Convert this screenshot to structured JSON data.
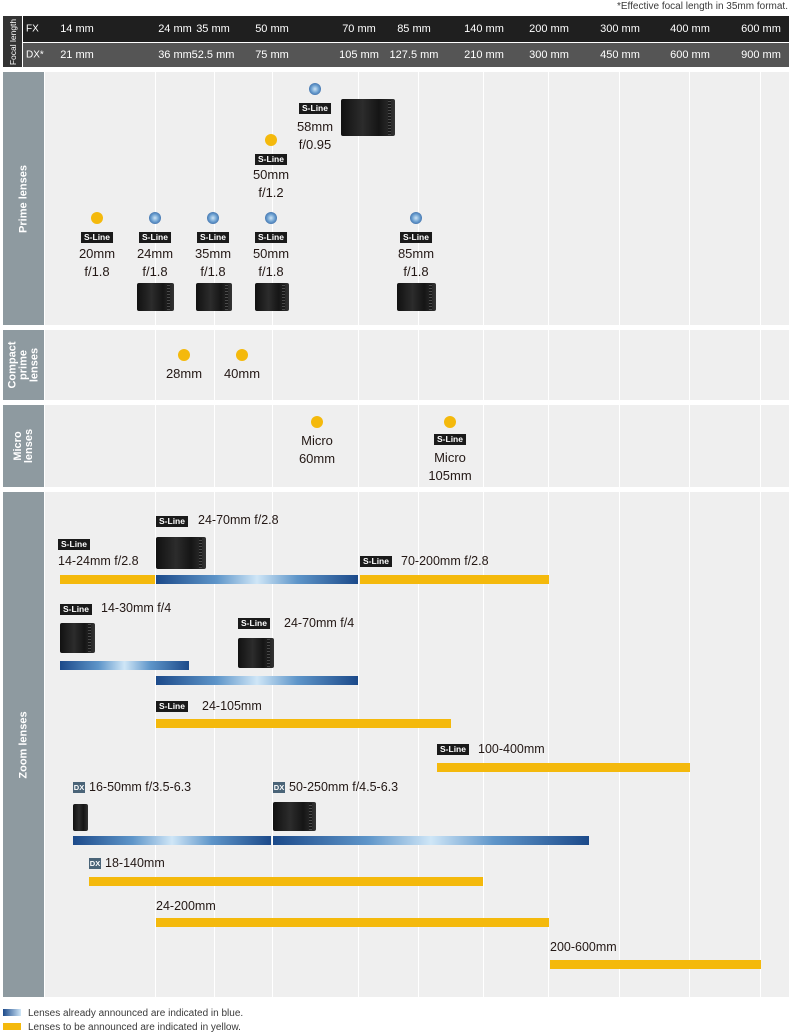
{
  "footnote": "*Effective focal length in 35mm format.",
  "header": {
    "label": "Focal length",
    "fx_tag": "FX",
    "dx_tag": "DX*",
    "fx": [
      "14 mm",
      "24 mm",
      "35 mm",
      "50 mm",
      "70 mm",
      "85 mm",
      "140 mm",
      "200 mm",
      "300 mm",
      "400 mm",
      "600 mm"
    ],
    "dx": [
      "21 mm",
      "36 mm",
      "52.5 mm",
      "75 mm",
      "105 mm",
      "127.5 mm",
      "210 mm",
      "300 mm",
      "450 mm",
      "600 mm",
      "900 mm"
    ]
  },
  "sections": {
    "prime": "Prime lenses",
    "compact": "Compact prime lenses",
    "micro": "Micro lenses",
    "zoom": "Zoom lenses"
  },
  "sline_label": "S-Line",
  "dx_label": "DX",
  "prime_lenses": [
    {
      "name": "58mm\nf/0.95",
      "status": "announced",
      "s_line": true
    },
    {
      "name": "50mm\nf/1.2",
      "status": "planned",
      "s_line": true
    },
    {
      "name": "20mm\nf/1.8",
      "status": "planned",
      "s_line": true
    },
    {
      "name": "24mm\nf/1.8",
      "status": "announced",
      "s_line": true
    },
    {
      "name": "35mm\nf/1.8",
      "status": "announced",
      "s_line": true
    },
    {
      "name": "50mm\nf/1.8",
      "status": "announced",
      "s_line": true
    },
    {
      "name": "85mm\nf/1.8",
      "status": "announced",
      "s_line": true
    }
  ],
  "compact_lenses": [
    {
      "name": "28mm",
      "status": "planned"
    },
    {
      "name": "40mm",
      "status": "planned"
    }
  ],
  "micro_lenses": [
    {
      "name": "Micro\n60mm",
      "status": "planned",
      "s_line": false
    },
    {
      "name": "Micro\n105mm",
      "status": "planned",
      "s_line": true
    }
  ],
  "zoom_lenses": [
    {
      "name": "24-70mm f/2.8",
      "status": "announced",
      "s_line": true
    },
    {
      "name": "14-24mm f/2.8",
      "status": "planned",
      "s_line": true
    },
    {
      "name": "70-200mm f/2.8",
      "status": "planned",
      "s_line": true
    },
    {
      "name": "14-30mm f/4",
      "status": "announced",
      "s_line": true
    },
    {
      "name": "24-70mm f/4",
      "status": "announced",
      "s_line": true
    },
    {
      "name": "24-105mm",
      "status": "planned",
      "s_line": true
    },
    {
      "name": "100-400mm",
      "status": "planned",
      "s_line": true
    },
    {
      "name": "16-50mm f/3.5-6.3",
      "status": "announced",
      "dx": true
    },
    {
      "name": "50-250mm f/4.5-6.3",
      "status": "announced",
      "dx": true
    },
    {
      "name": "18-140mm",
      "status": "planned",
      "dx": true
    },
    {
      "name": "24-200mm",
      "status": "planned"
    },
    {
      "name": "200-600mm",
      "status": "planned"
    }
  ],
  "legend": {
    "announced": "Lenses already announced are indicated in blue.",
    "planned": "Lenses to be announced are indicated in yellow."
  },
  "colors": {
    "announced_blue": "#1c4a8a",
    "planned_yellow": "#f4b90c",
    "header_dark": "#1f1f1f",
    "section_label": "#8e9aa0"
  }
}
